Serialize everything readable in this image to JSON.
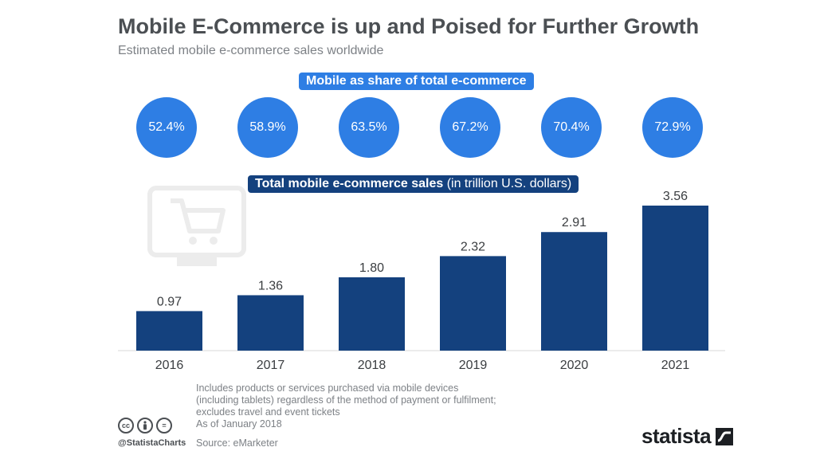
{
  "title": "Mobile E-Commerce is up and Poised for Further Growth",
  "subtitle": "Estimated mobile e-commerce sales worldwide",
  "share_label": "Mobile as share of total e-commerce",
  "total_label_bold": "Total mobile e-commerce sales",
  "total_label_rest": " (in trillion U.S. dollars)",
  "shares": [
    "52.4%",
    "58.9%",
    "63.5%",
    "67.2%",
    "70.4%",
    "72.9%"
  ],
  "notes": [
    "Includes products or services purchased via mobile devices",
    "(including tablets) regardless of the method of payment or fulfilment;",
    "excludes travel and event tickets",
    "As of January 2018"
  ],
  "source": "Source: eMarketer",
  "handle": "@StatistaCharts",
  "brand": "statista",
  "colors": {
    "bar": "#14417e",
    "circle": "#2e7ee4",
    "title": "#4b4f53"
  },
  "chart_data": {
    "type": "bar",
    "categories": [
      "2016",
      "2017",
      "2018",
      "2019",
      "2020",
      "2021"
    ],
    "values": [
      0.97,
      1.36,
      1.8,
      2.32,
      2.91,
      3.56
    ],
    "value_labels": [
      "0.97",
      "1.36",
      "1.80",
      "2.32",
      "2.91",
      "3.56"
    ],
    "title": "Mobile E-Commerce is up and Poised for Further Growth",
    "subtitle": "Estimated mobile e-commerce sales worldwide",
    "ylabel": "",
    "xlabel": "",
    "grid": false,
    "annotation": [
      "52.4%",
      "58.9%",
      "63.5%",
      "67.2%",
      "70.4%",
      "72.9%"
    ]
  }
}
